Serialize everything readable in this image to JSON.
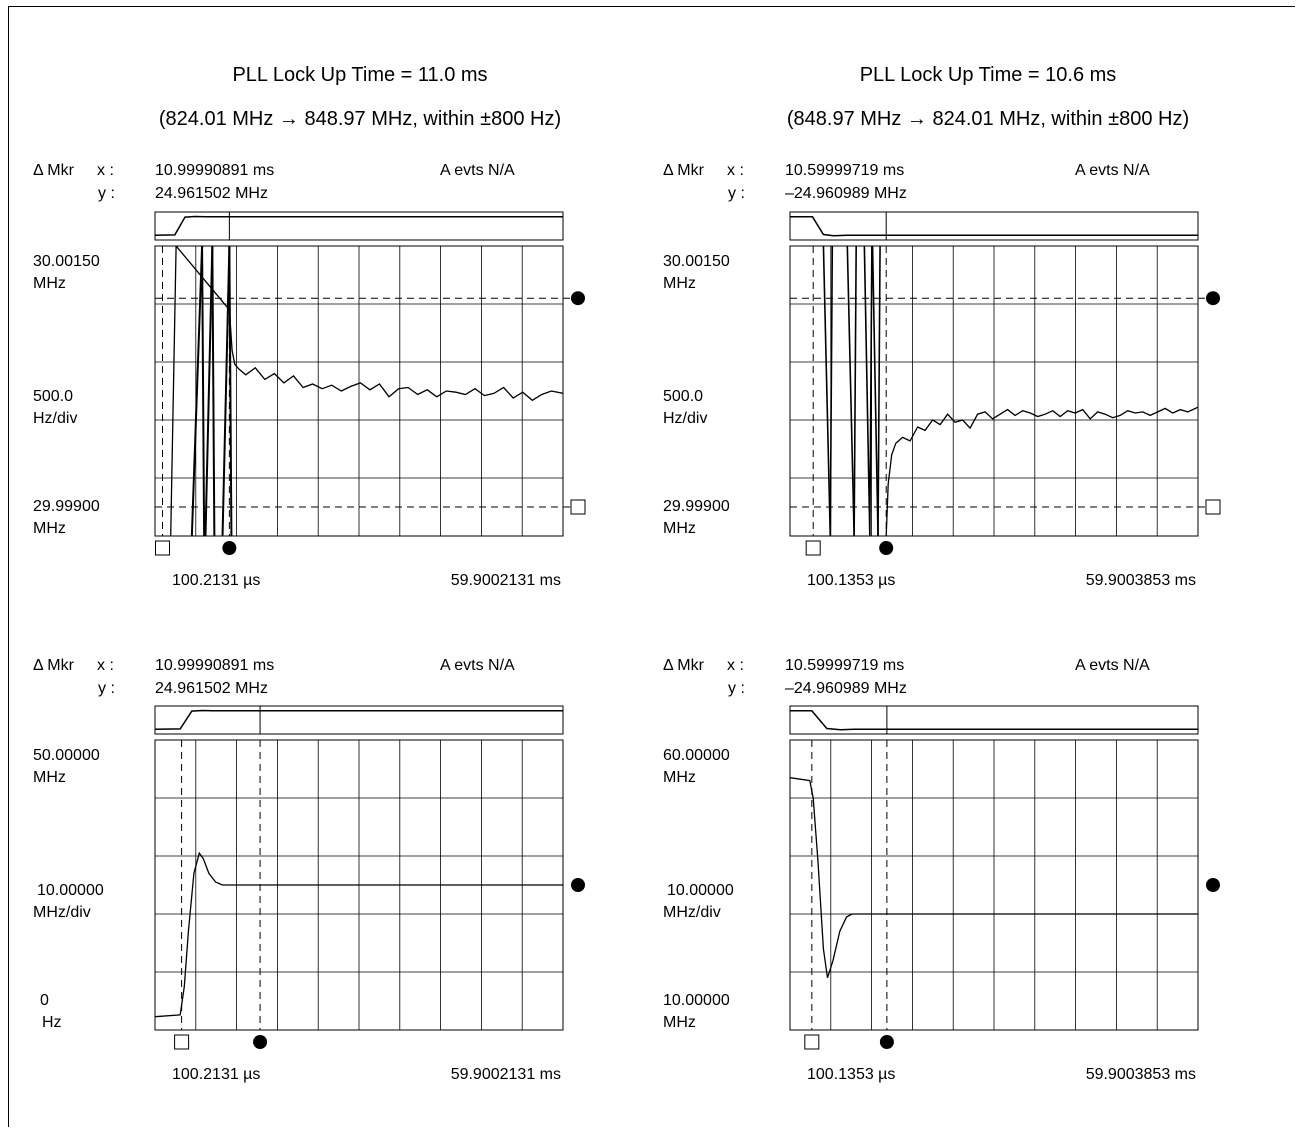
{
  "titles": [
    {
      "line1": "PLL Lock Up Time = 11.0 ms",
      "line2": "(824.01 MHz → 848.97 MHz, within ±800 Hz)"
    },
    {
      "line1": "PLL Lock Up Time = 10.6 ms",
      "line2": "(848.97 MHz → 824.01 MHz, within ±800 Hz)"
    }
  ],
  "chart_data": [
    {
      "type": "line",
      "title": "PLL Lock Up Time = 11.0 ms",
      "marker_label": "Δ Mkr",
      "x_label": "x :",
      "y_label": "y :",
      "marker_x": "10.99990891 ms",
      "marker_y": "24.961502 MHz",
      "events": "A evts N/A",
      "top_label": [
        "30.00150",
        "MHz"
      ],
      "mid_label": [
        "500.0",
        "Hz/div"
      ],
      "bottom_label": [
        "29.99900",
        "MHz"
      ],
      "x_start": "100.2131 µs",
      "x_end": "59.9002131 ms",
      "xlim_ms": [
        0.1002,
        59.9002
      ],
      "ylim_mhz": [
        29.999,
        30.0015
      ],
      "marker_a_ms": 1.2,
      "marker_b_ms": 11.0,
      "ref_a_mhz": 29.99925,
      "ref_b_mhz": 30.00105,
      "x_ms": [
        2.4,
        3.2,
        11.0,
        11.4,
        11.8,
        12.4,
        13.4,
        14.8,
        16.2,
        17.6,
        19.0,
        20.4,
        21.8,
        23.2,
        24.6,
        26.0,
        27.4,
        28.8,
        30.2,
        31.6,
        33.0,
        34.4,
        35.8,
        37.2,
        38.6,
        40.0,
        41.4,
        42.8,
        44.2,
        45.6,
        47.0,
        48.4,
        49.8,
        51.2,
        52.6,
        54.0,
        55.4,
        56.8,
        58.2,
        59.9
      ],
      "y_mhz": [
        29.999,
        30.0015,
        30.00095,
        30.0006,
        30.00048,
        30.00044,
        30.00039,
        30.00045,
        30.00035,
        30.0004,
        30.00032,
        30.00038,
        30.00028,
        30.00031,
        30.00027,
        30.0003,
        30.00025,
        30.00029,
        30.00032,
        30.00026,
        30.00031,
        30.0002,
        30.00027,
        30.00028,
        30.00022,
        30.00026,
        30.0002,
        30.00025,
        30.00024,
        30.00022,
        30.00027,
        30.00021,
        30.00023,
        30.00028,
        30.00019,
        30.00024,
        30.00017,
        30.00022,
        30.00025,
        30.00023
      ],
      "inset": {
        "x_ms": [
          0.1,
          3.0,
          4.5,
          6.0,
          7.5,
          59.9
        ],
        "y_mhz": [
          824.01,
          824.5,
          848.5,
          849.3,
          848.97,
          848.97
        ]
      }
    },
    {
      "type": "line",
      "title": "PLL Lock Up Time = 10.6 ms",
      "marker_label": "Δ Mkr",
      "x_label": "x :",
      "y_label": "y :",
      "marker_x": "10.59999719 ms",
      "marker_y": "–24.960989 MHz",
      "events": "A evts N/A",
      "top_label": [
        "30.00150",
        "MHz"
      ],
      "mid_label": [
        "500.0",
        "Hz/div"
      ],
      "bottom_label": [
        "29.99900",
        "MHz"
      ],
      "x_start": "100.1353 µs",
      "x_end": "59.9003853 ms",
      "xlim_ms": [
        0.1001,
        59.9004
      ],
      "ylim_mhz": [
        29.999,
        30.0015
      ],
      "marker_a_ms": 3.5,
      "marker_b_ms": 14.2,
      "ref_a_mhz": 29.99925,
      "ref_b_mhz": 30.00105,
      "x_ms": [
        14.2,
        14.5,
        15.0,
        15.6,
        16.6,
        17.7,
        18.8,
        19.9,
        21.0,
        22.1,
        23.2,
        24.3,
        25.4,
        26.5,
        27.6,
        28.7,
        29.8,
        30.9,
        32.0,
        33.1,
        34.2,
        35.3,
        36.4,
        37.5,
        38.6,
        39.7,
        40.8,
        41.9,
        43.0,
        44.1,
        45.2,
        46.3,
        47.4,
        48.5,
        49.6,
        50.7,
        51.8,
        52.9,
        54.0,
        55.1,
        56.2,
        57.3,
        58.4,
        59.9
      ],
      "y_mhz": [
        29.999,
        29.99945,
        29.9997,
        29.9998,
        29.99985,
        29.99982,
        29.99994,
        29.99991,
        30.0,
        29.99996,
        30.00005,
        29.99998,
        30.0,
        29.99993,
        30.00005,
        30.00007,
        30.00001,
        30.00005,
        30.00009,
        30.00004,
        30.00008,
        30.00006,
        30.00003,
        30.00005,
        30.00008,
        30.00003,
        30.00008,
        30.00006,
        30.00009,
        30.00001,
        30.00007,
        30.00005,
        30.00002,
        30.00004,
        30.00008,
        30.00006,
        30.00007,
        30.00004,
        30.00007,
        30.0001,
        30.00006,
        30.00009,
        30.00007,
        30.00011
      ],
      "inset": {
        "x_ms": [
          0.1,
          3.4,
          5.0,
          6.5,
          8.5,
          59.9
        ],
        "y_mhz": [
          848.97,
          848.9,
          825.0,
          823.3,
          824.01,
          824.01
        ]
      }
    },
    {
      "type": "line",
      "title": "",
      "marker_label": "Δ Mkr",
      "x_label": "x :",
      "y_label": "y :",
      "marker_x": "10.99990891 ms",
      "marker_y": "24.961502 MHz",
      "events": "A evts N/A",
      "top_label": [
        "50.00000",
        "MHz"
      ],
      "mid_label": [
        "10.00000",
        "MHz/div"
      ],
      "bottom_label": [
        "0",
        "Hz"
      ],
      "x_start": "100.2131 µs",
      "x_end": "59.9002131 ms",
      "xlim_ms": [
        0.1002,
        59.9002
      ],
      "ylim_mhz": [
        0,
        50
      ],
      "marker_a_ms": 4.0,
      "marker_b_ms": 15.5,
      "ref_b_mhz": 25,
      "x_ms": [
        0.1002,
        3.8,
        4.4,
        5.0,
        5.8,
        6.6,
        7.2,
        8.0,
        9.0,
        10.0,
        11.0,
        12.0,
        14.0,
        59.9002
      ],
      "y_mhz": [
        2.3,
        2.6,
        7.5,
        17.0,
        27.0,
        30.5,
        29.5,
        27.0,
        25.5,
        25.0,
        25.0,
        25.0,
        25.0,
        25.0
      ],
      "inset": {
        "x_ms": [
          0.1,
          3.8,
          5.5,
          7.0,
          8.5,
          59.9
        ],
        "y_mhz": [
          824.01,
          824.5,
          848.5,
          849.3,
          848.97,
          848.97
        ]
      }
    },
    {
      "type": "line",
      "title": "",
      "marker_label": "Δ Mkr",
      "x_label": "x :",
      "y_label": "y :",
      "marker_x": "10.59999719 ms",
      "marker_y": "–24.960989 MHz",
      "events": "A evts N/A",
      "top_label": [
        "60.00000",
        "MHz"
      ],
      "mid_label": [
        "10.00000",
        "MHz/div"
      ],
      "bottom_label": [
        "10.00000",
        "MHz"
      ],
      "x_start": "100.1353 µs",
      "x_end": "59.9003853 ms",
      "xlim_ms": [
        0.1001,
        59.9004
      ],
      "ylim_mhz": [
        10,
        60
      ],
      "marker_a_ms": 3.3,
      "marker_b_ms": 14.3,
      "ref_b_mhz": 35,
      "x_ms": [
        0.1001,
        3.0,
        3.5,
        4.2,
        5.0,
        5.6,
        6.4,
        7.4,
        8.4,
        9.2,
        10.0,
        12.0,
        59.9004
      ],
      "y_mhz": [
        53.5,
        53.0,
        50.0,
        39.0,
        24.0,
        19.0,
        22.0,
        27.0,
        29.5,
        30.0,
        30.0,
        30.0,
        30.0
      ],
      "inset": {
        "x_ms": [
          0.1,
          3.3,
          5.5,
          7.5,
          9.5,
          59.9
        ],
        "y_mhz": [
          848.97,
          848.9,
          825.0,
          823.3,
          824.01,
          824.01
        ]
      }
    }
  ]
}
